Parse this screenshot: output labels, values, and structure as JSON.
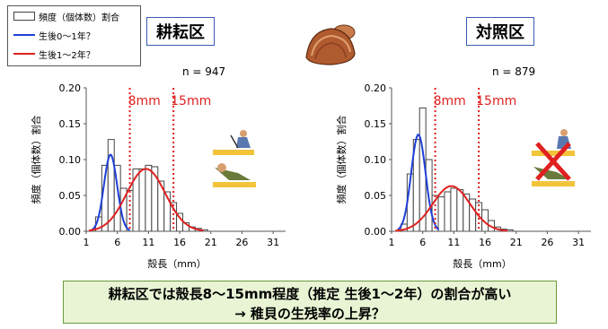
{
  "legend": {
    "bar_label": "頻度（個体数）割合",
    "blue_label": "生後0～1年？",
    "red_label": "生後1～2年？"
  },
  "colors": {
    "blue": "#1f3fd6",
    "red": "#e02020",
    "bar_fill": "#ffffff",
    "bar_stroke": "#444444",
    "banner_bg": "#e8f4d4",
    "title_border": "#3a5bb5"
  },
  "panels": {
    "left": {
      "title": "耕耘区",
      "n_label": "n = 947",
      "line8_label": "8mm",
      "line15_label": "15mm"
    },
    "right": {
      "title": "対照区",
      "n_label": "n = 879",
      "line8_label": "8mm",
      "line15_label": "15mm"
    }
  },
  "banner": {
    "line1": "耕耘区では殻長8～15mm程度（推定 生後1～2年）の割合が高い",
    "line2": "→ 稚貝の生残率の上昇？"
  },
  "chart_data": [
    {
      "type": "bar",
      "title": "耕耘区",
      "annotation": "n = 947",
      "xlabel": "殻長（mm）",
      "ylabel": "頻度（個体数）割合",
      "xlim": [
        1,
        33
      ],
      "ylim": [
        0,
        0.2
      ],
      "xticks": [
        1,
        6,
        11,
        16,
        21,
        26,
        31
      ],
      "yticks": [
        "0.00",
        "0.05",
        "0.10",
        "0.15",
        "0.20"
      ],
      "x": [
        3,
        4,
        5,
        6,
        7,
        8,
        9,
        10,
        11,
        12,
        13,
        14,
        15,
        16,
        17,
        18,
        19,
        20
      ],
      "values": [
        0.02,
        0.092,
        0.128,
        0.092,
        0.06,
        0.057,
        0.087,
        0.087,
        0.092,
        0.09,
        0.07,
        0.055,
        0.04,
        0.025,
        0.012,
        0.006,
        0.004,
        0.002
      ],
      "series": [
        {
          "name": "生後0～1年？",
          "mean": 4.9,
          "sd": 1.05,
          "peak": 0.107
        },
        {
          "name": "生後1～2年？",
          "mean": 10.6,
          "sd": 3.1,
          "peak": 0.087
        }
      ],
      "vlines": [
        8,
        15
      ]
    },
    {
      "type": "bar",
      "title": "対照区",
      "annotation": "n = 879",
      "xlabel": "殻長（mm）",
      "ylabel": "頻度（個体数）割合",
      "xlim": [
        1,
        33
      ],
      "ylim": [
        0,
        0.2
      ],
      "xticks": [
        1,
        6,
        11,
        16,
        21,
        26,
        31
      ],
      "yticks": [
        "0.00",
        "0.05",
        "0.10",
        "0.15",
        "0.20"
      ],
      "x": [
        3,
        4,
        5,
        6,
        7,
        8,
        9,
        10,
        11,
        12,
        13,
        14,
        15,
        16,
        17,
        18,
        19,
        20
      ],
      "values": [
        0.01,
        0.08,
        0.128,
        0.172,
        0.1,
        0.05,
        0.048,
        0.055,
        0.06,
        0.058,
        0.052,
        0.045,
        0.04,
        0.03,
        0.015,
        0.006,
        0.003,
        0.002
      ],
      "series": [
        {
          "name": "生後0～1年？",
          "mean": 5.3,
          "sd": 1.15,
          "peak": 0.135
        },
        {
          "name": "生後1～2年？",
          "mean": 10.6,
          "sd": 3.0,
          "peak": 0.063
        }
      ],
      "vlines": [
        8,
        15
      ]
    }
  ]
}
